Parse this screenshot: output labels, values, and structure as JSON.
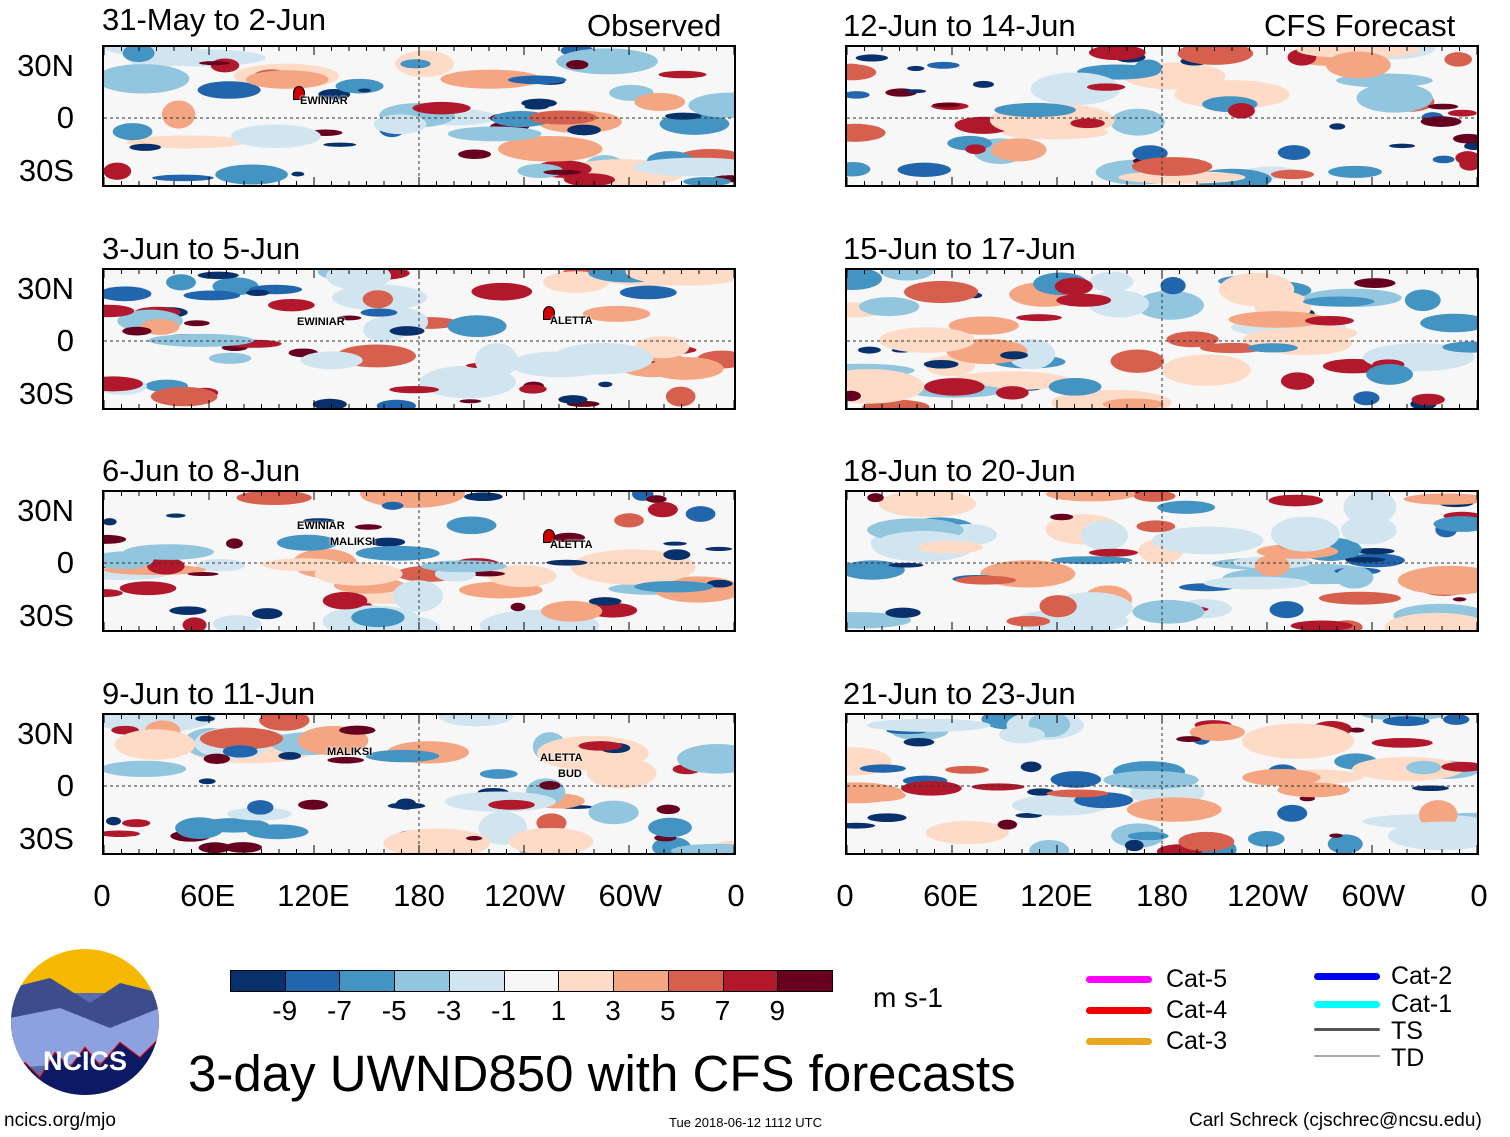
{
  "figure": {
    "title": "3-day UWND850 with CFS forecasts",
    "observed_label": "Observed",
    "forecast_label": "CFS Forecast",
    "footer_left": "ncics.org/mjo",
    "footer_center": "Tue 2018-06-12 1112 UTC",
    "footer_right": "Carl Schreck (cjschrec@ncsu.edu)",
    "logo_text": "NCICS"
  },
  "panels": {
    "observed": [
      {
        "title": "31-May to 2-Jun",
        "storms": [
          "EWINIAR"
        ]
      },
      {
        "title": "3-Jun to 5-Jun",
        "storms": [
          "EWINIAR",
          "ALETTA"
        ]
      },
      {
        "title": "6-Jun to 8-Jun",
        "storms": [
          "EWINIAR",
          "MALIKSI",
          "ALETTA"
        ]
      },
      {
        "title": "9-Jun to 11-Jun",
        "storms": [
          "MALIKSI",
          "ALETTA",
          "BUD"
        ]
      }
    ],
    "forecast": [
      {
        "title": "12-Jun to 14-Jun"
      },
      {
        "title": "15-Jun to 17-Jun"
      },
      {
        "title": "18-Jun to 20-Jun"
      },
      {
        "title": "21-Jun to 23-Jun"
      }
    ]
  },
  "axes": {
    "lat_labels": [
      "30N",
      "0",
      "30S"
    ],
    "lon_labels": [
      "0",
      "60E",
      "120E",
      "180",
      "120W",
      "60W",
      "0"
    ]
  },
  "colorbar": {
    "units": "m s-1",
    "labels": [
      "-9",
      "-7",
      "-5",
      "-3",
      "-1",
      "1",
      "3",
      "5",
      "7",
      "9"
    ],
    "colors": [
      "#08306b",
      "#2166ac",
      "#4393c3",
      "#92c5de",
      "#d1e5f0",
      "#f7f7f7",
      "#fddbc7",
      "#f4a582",
      "#d6604d",
      "#b2182b",
      "#67001f"
    ]
  },
  "track_legend": [
    {
      "label": "Cat-5",
      "color": "#ff00ff"
    },
    {
      "label": "Cat-4",
      "color": "#ee0000"
    },
    {
      "label": "Cat-3",
      "color": "#e8a820"
    },
    {
      "label": "Cat-2",
      "color": "#0000ee"
    },
    {
      "label": "Cat-1",
      "color": "#00ffff"
    },
    {
      "label": "TS",
      "color": "#555555"
    },
    {
      "label": "TD",
      "color": "#aaaaaa"
    }
  ]
}
